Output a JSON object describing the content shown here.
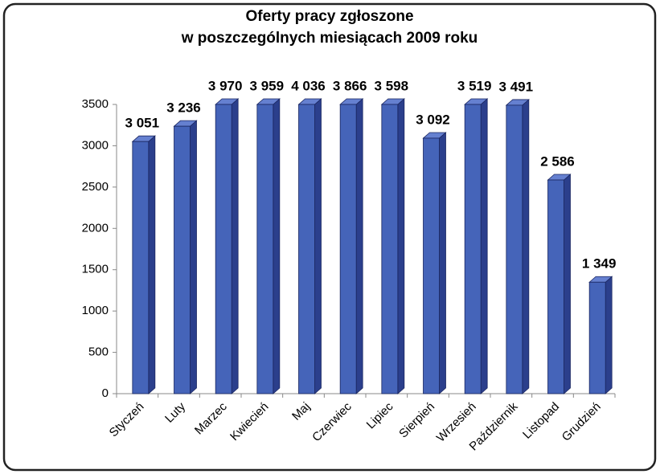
{
  "chart_data": {
    "type": "bar3d",
    "title": [
      "Oferty pracy zgłoszone",
      "w poszczególnych miesiącach 2009 roku"
    ],
    "categories": [
      "Styczeń",
      "Luty",
      "Marzec",
      "Kwiecień",
      "Maj",
      "Czerwiec",
      "Lipiec",
      "Sierpień",
      "Wrzesień",
      "Październik",
      "Listopad",
      "Grudzień"
    ],
    "values": [
      3051,
      3236,
      3970,
      3959,
      4036,
      3866,
      3598,
      3092,
      3519,
      3491,
      2586,
      1349
    ],
    "value_labels": [
      "3 051",
      "3 236",
      "3 970",
      "3 959",
      "4 036",
      "3 866",
      "3 598",
      "3 092",
      "3 519",
      "3 491",
      "2 586",
      "1 349"
    ],
    "color": "#4564b9",
    "ylim": [
      0,
      3500
    ],
    "yticks": [
      0,
      500,
      1000,
      1500,
      2000,
      2500,
      3000,
      3500
    ],
    "grid": false
  }
}
